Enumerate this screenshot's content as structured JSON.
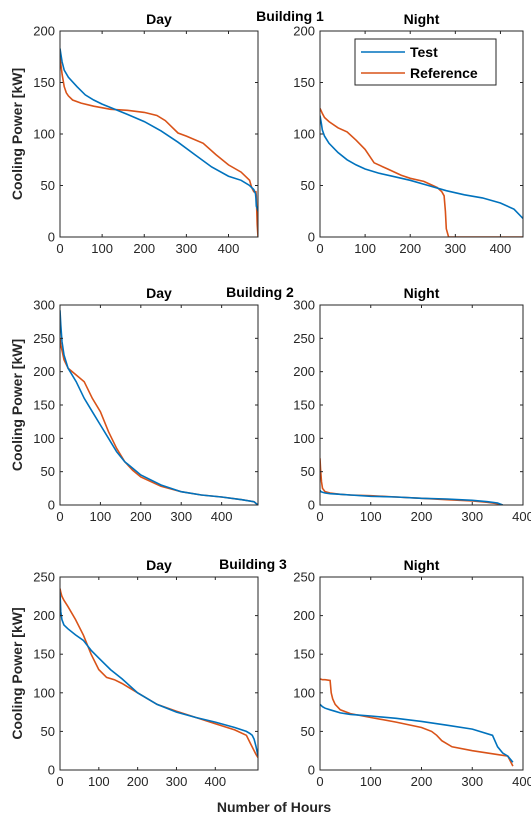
{
  "figure": {
    "ylabel": "Cooling Power [kW]",
    "xlabel": "Number of Hours",
    "legend": {
      "position": "top-right",
      "entries": [
        "Test",
        "Reference"
      ]
    },
    "colors": {
      "test": "#0072BD",
      "reference": "#D95319",
      "axis": "#262626",
      "background": "#ffffff"
    }
  },
  "chart_data": [
    {
      "type": "line",
      "building": "Building 1",
      "title": "Day",
      "xlim": [
        0,
        470
      ],
      "ylim": [
        0,
        200
      ],
      "xticks": [
        0,
        100,
        200,
        300,
        400
      ],
      "yticks": [
        0,
        50,
        100,
        150,
        200
      ],
      "series": [
        {
          "name": "Test",
          "x": [
            0,
            2,
            5,
            10,
            20,
            40,
            60,
            80,
            100,
            130,
            160,
            200,
            240,
            280,
            320,
            360,
            400,
            430,
            450,
            460,
            462,
            464,
            465,
            466,
            468,
            470
          ],
          "y": [
            183,
            178,
            170,
            162,
            155,
            146,
            138,
            133,
            129,
            124,
            119,
            112,
            103,
            92,
            80,
            68,
            59,
            55,
            50,
            46,
            44,
            42,
            38,
            30,
            28,
            25
          ]
        },
        {
          "name": "Reference",
          "x": [
            0,
            2,
            5,
            10,
            15,
            20,
            30,
            50,
            80,
            120,
            160,
            200,
            230,
            250,
            280,
            300,
            340,
            370,
            400,
            430,
            450,
            455,
            460,
            465,
            466,
            468,
            470
          ],
          "y": [
            175,
            168,
            158,
            146,
            140,
            137,
            133,
            130,
            127,
            124,
            123,
            121,
            118,
            113,
            101,
            98,
            91,
            80,
            70,
            63,
            55,
            48,
            44,
            44,
            40,
            12,
            0
          ]
        }
      ]
    },
    {
      "type": "line",
      "building": "",
      "title": "Night",
      "xlim": [
        0,
        450
      ],
      "ylim": [
        0,
        200
      ],
      "xticks": [
        0,
        100,
        200,
        300,
        400
      ],
      "yticks": [
        0,
        50,
        100,
        150,
        200
      ],
      "series": [
        {
          "name": "Test",
          "x": [
            0,
            3,
            5,
            10,
            20,
            40,
            60,
            80,
            100,
            130,
            160,
            200,
            240,
            280,
            320,
            360,
            400,
            430,
            450
          ],
          "y": [
            118,
            110,
            104,
            98,
            91,
            82,
            75,
            70,
            66,
            62,
            59,
            55,
            50,
            45,
            41,
            38,
            33,
            27,
            18
          ]
        },
        {
          "name": "Reference",
          "x": [
            0,
            3,
            5,
            10,
            20,
            40,
            60,
            80,
            100,
            120,
            150,
            180,
            200,
            230,
            250,
            260,
            270,
            275,
            278,
            280,
            285,
            290,
            300,
            350,
            400,
            450
          ],
          "y": [
            125,
            122,
            120,
            116,
            112,
            106,
            102,
            94,
            85,
            72,
            66,
            60,
            57,
            54,
            50,
            48,
            44,
            40,
            25,
            8,
            0,
            0,
            0,
            0,
            0,
            0
          ]
        }
      ]
    },
    {
      "type": "line",
      "building": "Building 2",
      "title": "Day",
      "xlim": [
        0,
        490
      ],
      "ylim": [
        0,
        300
      ],
      "xticks": [
        0,
        100,
        200,
        300,
        400
      ],
      "yticks": [
        0,
        50,
        100,
        150,
        200,
        250,
        300
      ],
      "series": [
        {
          "name": "Test",
          "x": [
            0,
            2,
            5,
            10,
            20,
            40,
            60,
            80,
            100,
            120,
            140,
            160,
            180,
            200,
            250,
            300,
            350,
            400,
            450,
            480,
            490
          ],
          "y": [
            292,
            270,
            245,
            225,
            205,
            185,
            160,
            140,
            120,
            100,
            80,
            65,
            55,
            45,
            30,
            20,
            15,
            12,
            8,
            5,
            0
          ]
        },
        {
          "name": "Reference",
          "x": [
            0,
            2,
            5,
            10,
            20,
            40,
            60,
            80,
            100,
            120,
            140,
            160,
            180,
            200,
            250,
            300,
            350,
            400,
            450,
            480,
            490
          ],
          "y": [
            250,
            240,
            232,
            218,
            205,
            195,
            185,
            160,
            140,
            110,
            85,
            65,
            52,
            42,
            28,
            20,
            15,
            12,
            8,
            5,
            0
          ]
        }
      ]
    },
    {
      "type": "line",
      "building": "",
      "title": "Night",
      "xlim": [
        0,
        400
      ],
      "ylim": [
        0,
        300
      ],
      "xticks": [
        0,
        100,
        200,
        300,
        400
      ],
      "yticks": [
        0,
        50,
        100,
        150,
        200,
        250,
        300
      ],
      "series": [
        {
          "name": "Test",
          "x": [
            0,
            2,
            5,
            10,
            20,
            40,
            60,
            100,
            150,
            200,
            250,
            300,
            330,
            350,
            360
          ],
          "y": [
            22,
            20,
            19,
            18,
            17,
            16,
            15,
            13,
            12,
            10,
            9,
            7,
            5,
            3,
            0
          ]
        },
        {
          "name": "Reference",
          "x": [
            0,
            1,
            2,
            3,
            5,
            10,
            20,
            40,
            60,
            100,
            150,
            200,
            250,
            300,
            330,
            350,
            360
          ],
          "y": [
            70,
            55,
            45,
            35,
            25,
            20,
            18,
            16,
            15,
            14,
            12,
            10,
            8,
            6,
            4,
            2,
            0
          ]
        }
      ]
    },
    {
      "type": "line",
      "building": "Building 3",
      "title": "Day",
      "xlim": [
        0,
        510
      ],
      "ylim": [
        0,
        250
      ],
      "xticks": [
        0,
        100,
        200,
        300,
        400
      ],
      "yticks": [
        0,
        50,
        100,
        150,
        200,
        250
      ],
      "series": [
        {
          "name": "Test",
          "x": [
            0,
            2,
            5,
            10,
            20,
            40,
            60,
            80,
            100,
            130,
            160,
            200,
            250,
            300,
            350,
            400,
            450,
            480,
            490,
            495,
            500,
            505,
            510
          ],
          "y": [
            230,
            205,
            195,
            188,
            183,
            175,
            168,
            155,
            145,
            130,
            118,
            100,
            85,
            75,
            68,
            62,
            55,
            50,
            47,
            45,
            40,
            30,
            18
          ]
        },
        {
          "name": "Reference",
          "x": [
            0,
            2,
            5,
            10,
            20,
            40,
            60,
            80,
            100,
            120,
            140,
            160,
            200,
            250,
            300,
            350,
            400,
            450,
            480,
            490,
            500,
            505,
            510
          ],
          "y": [
            235,
            230,
            225,
            220,
            212,
            195,
            175,
            150,
            130,
            120,
            117,
            112,
            100,
            85,
            76,
            68,
            60,
            52,
            45,
            35,
            25,
            20,
            16
          ]
        }
      ]
    },
    {
      "type": "line",
      "building": "",
      "title": "Night",
      "xlim": [
        0,
        400
      ],
      "ylim": [
        0,
        250
      ],
      "xticks": [
        0,
        100,
        200,
        300,
        400
      ],
      "yticks": [
        0,
        50,
        100,
        150,
        200,
        250
      ],
      "series": [
        {
          "name": "Test",
          "x": [
            0,
            5,
            10,
            20,
            30,
            40,
            60,
            100,
            150,
            200,
            250,
            300,
            340,
            350,
            360,
            370,
            380
          ],
          "y": [
            85,
            82,
            80,
            78,
            76,
            74,
            72,
            70,
            67,
            63,
            58,
            53,
            45,
            30,
            22,
            18,
            10
          ]
        },
        {
          "name": "Reference",
          "x": [
            0,
            5,
            10,
            20,
            22,
            25,
            30,
            40,
            60,
            100,
            150,
            200,
            220,
            230,
            240,
            260,
            300,
            350,
            370,
            380
          ],
          "y": [
            118,
            117,
            117,
            116,
            100,
            92,
            85,
            78,
            73,
            68,
            62,
            55,
            50,
            45,
            38,
            30,
            25,
            20,
            18,
            5
          ]
        }
      ]
    }
  ]
}
